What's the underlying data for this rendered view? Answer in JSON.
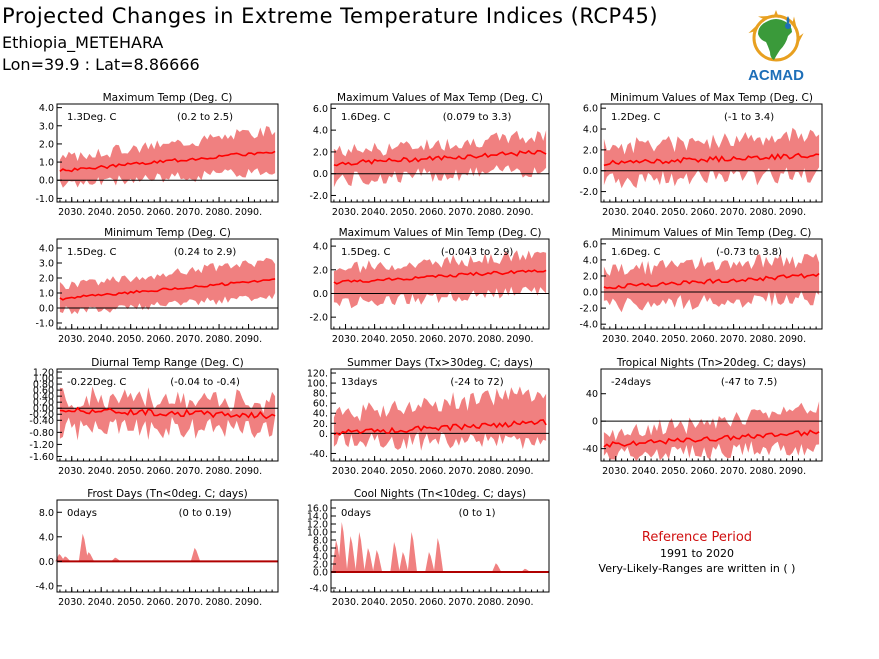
{
  "header": {
    "title": "Projected Changes in Extreme Temperature Indices (RCP45)",
    "location": "Ethiopia_METEHARA",
    "coords": "Lon=39.9 : Lat=8.86666"
  },
  "logo": {
    "text": "ACMAD",
    "icon": "africa-map-logo-icon"
  },
  "reference": {
    "label": "Reference Period",
    "years": "1991 to 2020",
    "note": "Very-Likely-Ranges are written in ( )"
  },
  "colors": {
    "band": "#f08080",
    "line": "#ff0000",
    "zero": "#000000",
    "ref": "#d01010"
  },
  "chart_data": [
    {
      "type": "area",
      "title": "Maximum Temp (Deg. C)",
      "mean_label": "1.3Deg. C",
      "range_label": "(0.2 to 2.5)",
      "x": [
        2025,
        2100
      ],
      "xticks": [
        "2030.",
        "2040.",
        "2050.",
        "2060.",
        "2070.",
        "2080.",
        "2090."
      ],
      "ylim": [
        -1.2,
        4.2
      ],
      "yticks": [
        "-1.0",
        "0.0",
        "1.0",
        "2.0",
        "3.0",
        "4.0"
      ],
      "mean_start": 0.5,
      "mean_end": 1.6,
      "band_low_start": -0.2,
      "band_low_end": 0.6,
      "band_high_start": 1.2,
      "band_high_end": 2.8,
      "noise": 0.3,
      "noise_type": "band",
      "seed": 3
    },
    {
      "type": "area",
      "title": "Maximum Values of Max Temp (Deg. C)",
      "mean_label": "1.6Deg. C",
      "range_label": "(0.079 to 3.3)",
      "x": [
        2025,
        2100
      ],
      "xticks": [
        "2030.",
        "2040.",
        "2050.",
        "2060.",
        "2070.",
        "2080.",
        "2090."
      ],
      "ylim": [
        -2.6,
        6.4
      ],
      "yticks": [
        "-2.0",
        "0.0",
        "2.0",
        "4.0",
        "6.0"
      ],
      "mean_start": 0.9,
      "mean_end": 2.0,
      "band_low_start": -0.5,
      "band_low_end": 0.5,
      "band_high_start": 2.0,
      "band_high_end": 3.5,
      "noise": 0.7,
      "noise_type": "band",
      "seed": 7
    },
    {
      "type": "area",
      "title": "Minimum Values of Max Temp (Deg. C)",
      "mean_label": "1.2Deg. C",
      "range_label": "(-1 to 3.4)",
      "x": [
        2025,
        2100
      ],
      "xticks": [
        "2030.",
        "2040.",
        "2050.",
        "2060.",
        "2070.",
        "2080.",
        "2090."
      ],
      "ylim": [
        -3.0,
        6.4
      ],
      "yticks": [
        "-2.0",
        "0.0",
        "2.0",
        "4.0",
        "6.0"
      ],
      "mean_start": 0.7,
      "mean_end": 1.5,
      "band_low_start": -0.8,
      "band_low_end": -0.3,
      "band_high_start": 2.2,
      "band_high_end": 3.6,
      "noise": 0.8,
      "noise_type": "band",
      "seed": 11
    },
    {
      "type": "area",
      "title": "Minimum Temp (Deg. C)",
      "mean_label": "1.5Deg. C",
      "range_label": "(0.24 to 2.9)",
      "x": [
        2025,
        2100
      ],
      "xticks": [
        "2030.",
        "2040.",
        "2050.",
        "2060.",
        "2070.",
        "2080.",
        "2090."
      ],
      "ylim": [
        -1.4,
        4.6
      ],
      "yticks": [
        "-1.0",
        "0.0",
        "1.0",
        "2.0",
        "3.0",
        "4.0"
      ],
      "mean_start": 0.6,
      "mean_end": 1.9,
      "band_low_start": -0.2,
      "band_low_end": 0.8,
      "band_high_start": 1.4,
      "band_high_end": 3.2,
      "noise": 0.3,
      "noise_type": "band",
      "seed": 5
    },
    {
      "type": "area",
      "title": "Maximum Values of Min Temp (Deg. C)",
      "mean_label": "1.5Deg. C",
      "range_label": "(-0.043 to 2.9)",
      "x": [
        2025,
        2100
      ],
      "xticks": [
        "2030.",
        "2040.",
        "2050.",
        "2060.",
        "2070.",
        "2080.",
        "2090."
      ],
      "ylim": [
        -3.0,
        4.6
      ],
      "yticks": [
        "-2.0",
        "0.0",
        "2.0",
        "4.0"
      ],
      "mean_start": 0.9,
      "mean_end": 2.0,
      "band_low_start": -0.8,
      "band_low_end": 0.3,
      "band_high_start": 2.0,
      "band_high_end": 3.3,
      "noise": 0.5,
      "noise_type": "band",
      "seed": 9
    },
    {
      "type": "area",
      "title": "Minimum Values of Min Temp (Deg. C)",
      "mean_label": "1.6Deg. C",
      "range_label": "(-0.73 to 3.8)",
      "x": [
        2025,
        2100
      ],
      "xticks": [
        "2030.",
        "2040.",
        "2050.",
        "2060.",
        "2070.",
        "2080.",
        "2090."
      ],
      "ylim": [
        -4.6,
        6.6
      ],
      "yticks": [
        "-4.0",
        "-2.0",
        "0.0",
        "2.0",
        "4.0",
        "6.0"
      ],
      "mean_start": 0.6,
      "mean_end": 2.1,
      "band_low_start": -1.5,
      "band_low_end": -0.5,
      "band_high_start": 2.8,
      "band_high_end": 4.2,
      "noise": 0.9,
      "noise_type": "band",
      "seed": 13
    },
    {
      "type": "area",
      "title": "Diurnal Temp Range (Deg. C)",
      "mean_label": "-0.22Deg. C",
      "range_label": "(-0.04 to -0.4)",
      "x": [
        2025,
        2100
      ],
      "xticks": [
        "2030.",
        "2040.",
        "2050.",
        "2060.",
        "2070.",
        "2080.",
        "2090."
      ],
      "ylim": [
        -1.75,
        1.3
      ],
      "yticks": [
        "-1.60",
        "-1.20",
        "-0.80",
        "-0.40",
        "-0.20",
        "0.00",
        "0.20",
        "0.40",
        "0.60",
        "0.80",
        "1.00",
        "1.20"
      ],
      "mean_start": -0.05,
      "mean_end": -0.25,
      "band_low_start": -0.6,
      "band_low_end": -0.6,
      "band_high_start": 0.3,
      "band_high_end": 0.2,
      "noise": 0.35,
      "noise_type": "band",
      "seed": 17
    },
    {
      "type": "area",
      "title": "Summer Days (Tx>30deg. C; days)",
      "mean_label": "13days",
      "range_label": "(-24 to 72)",
      "x": [
        2025,
        2100
      ],
      "xticks": [
        "2030.",
        "2040.",
        "2050.",
        "2060.",
        "2070.",
        "2080.",
        "2090."
      ],
      "ylim": [
        -55,
        128
      ],
      "yticks": [
        "-40.",
        "0.",
        "20.",
        "40.",
        "60.",
        "80.",
        "100.",
        "120."
      ],
      "mean_start": 0,
      "mean_end": 22,
      "band_low_start": -12,
      "band_low_end": -8,
      "band_high_start": 35,
      "band_high_end": 85,
      "noise": 18,
      "noise_type": "band",
      "seed": 21
    },
    {
      "type": "area",
      "title": "Tropical Nights (Tn>20deg. C; days)",
      "mean_label": "-24days",
      "range_label": "(-47 to 7.5)",
      "x": [
        2025,
        2100
      ],
      "xticks": [
        "2030.",
        "2040.",
        "2050.",
        "2060.",
        "2070.",
        "2080.",
        "2090."
      ],
      "ylim": [
        -58,
        76
      ],
      "yticks": [
        "-40",
        "0",
        "40"
      ],
      "mean_start": -35,
      "mean_end": -16,
      "band_low_start": -45,
      "band_low_end": -38,
      "band_high_start": -22,
      "band_high_end": 20,
      "noise": 12,
      "noise_type": "band",
      "seed": 25
    },
    {
      "type": "area",
      "title": "Frost Days (Tn<0deg. C; days)",
      "mean_label": "0days",
      "range_label": "(0 to 0.19)",
      "x": [
        2025,
        2100
      ],
      "xticks": [
        "2030.",
        "2040.",
        "2050.",
        "2060.",
        "2070.",
        "2080.",
        "2090."
      ],
      "ylim": [
        -5,
        10
      ],
      "yticks": [
        "-4.0",
        "0.0",
        "4.0",
        "8.0"
      ],
      "mean_start": 0,
      "mean_end": 0,
      "band_low_start": 0,
      "band_low_end": 0,
      "band_high_start": 0,
      "band_high_end": 0,
      "noise": 0,
      "noise_type": "spikes",
      "spikes": [
        [
          2026,
          1.2
        ],
        [
          2028,
          0.8
        ],
        [
          2034,
          4.5
        ],
        [
          2036,
          1.5
        ],
        [
          2045,
          0.6
        ],
        [
          2072,
          2.2
        ]
      ],
      "seed": 31
    },
    {
      "type": "area",
      "title": "Cool Nights (Tn<10deg. C; days)",
      "mean_label": "0days",
      "range_label": "(0 to 1)",
      "x": [
        2025,
        2100
      ],
      "xticks": [
        "2030.",
        "2040.",
        "2050.",
        "2060.",
        "2070.",
        "2080.",
        "2090."
      ],
      "ylim": [
        -5,
        18
      ],
      "yticks": [
        "-4.0",
        "0.0",
        "2.0",
        "4.0",
        "6.0",
        "8.0",
        "10.0",
        "12.0",
        "14.0",
        "16.0"
      ],
      "mean_start": 0,
      "mean_end": 0,
      "band_low_start": 0,
      "band_low_end": 0,
      "band_high_start": 0,
      "band_high_end": 0,
      "noise": 0,
      "noise_type": "spikes",
      "spikes": [
        [
          2027,
          8
        ],
        [
          2029,
          12.5
        ],
        [
          2032,
          9
        ],
        [
          2035,
          10
        ],
        [
          2038,
          6
        ],
        [
          2041,
          5.5
        ],
        [
          2047,
          7.5
        ],
        [
          2050,
          5
        ],
        [
          2053,
          10
        ],
        [
          2059,
          5
        ],
        [
          2062,
          8.5
        ],
        [
          2082,
          2.2
        ],
        [
          2092,
          0.8
        ]
      ],
      "seed": 37
    }
  ]
}
